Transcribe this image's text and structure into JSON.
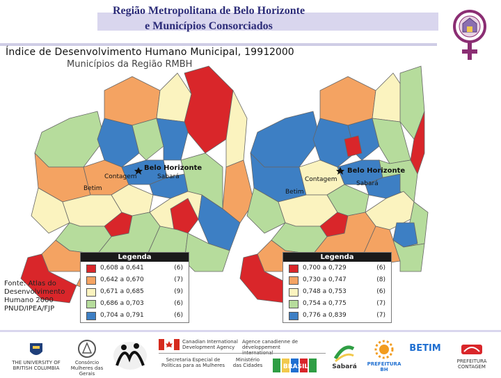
{
  "header": {
    "title_line1": "Região Metropolitana de Belo Horizonte",
    "title_line2": "e Municípios Consorciados"
  },
  "map": {
    "title": "Índice de Desenvolvimento Humano Municipal, 1991",
    "year_2": "2000",
    "subtitle": "Municípios da Região RMBH",
    "labels": {
      "capital": "Belo Horizonte",
      "contagem": "Contagem",
      "sabara": "Sabará",
      "betim": "Betim"
    }
  },
  "legend_1991": {
    "title": "Legenda",
    "rows": [
      {
        "range": "0,608 a 0,641",
        "count": "(6)",
        "color": "#d9262a"
      },
      {
        "range": "0,642 a 0,670",
        "count": "(7)",
        "color": "#f4a362"
      },
      {
        "range": "0,671 a 0,685",
        "count": "(9)",
        "color": "#fbf3bf"
      },
      {
        "range": "0,686 a 0,703",
        "count": "(6)",
        "color": "#b6dc9c"
      },
      {
        "range": "0,704 a 0,791",
        "count": "(6)",
        "color": "#3d7fc4"
      }
    ]
  },
  "legend_2000": {
    "title": "Legenda",
    "rows": [
      {
        "range": "0,700 a 0,729",
        "count": "(6)",
        "color": "#d9262a"
      },
      {
        "range": "0,730 a 0,747",
        "count": "(8)",
        "color": "#f4a362"
      },
      {
        "range": "0,748 a 0,753",
        "count": "(6)",
        "color": "#fbf3bf"
      },
      {
        "range": "0,754 a 0,775",
        "count": "(7)",
        "color": "#b6dc9c"
      },
      {
        "range": "0,776 a 0,839",
        "count": "(7)",
        "color": "#3d7fc4"
      }
    ]
  },
  "source": {
    "text_line1": "Fonte: Atlas do",
    "text_line2": "Desenvolvimento",
    "text_line3": "Humano 2000",
    "text_line4": "PNUD/IPEA/FJP"
  },
  "footer": {
    "ubc_line1": "THE UNIVERSITY OF",
    "ubc_line2": "BRITISH COLUMBIA",
    "consorcio": "Consórcio Mulheres das Gerais",
    "cida_en_1": "Canadian International",
    "cida_en_2": "Development Agency",
    "cida_fr_1": "Agence canadienne de",
    "cida_fr_2": "développement international",
    "secretaria_1": "Secretaria Especial de",
    "secretaria_2": "Políticas para as Mulheres",
    "ministerio_1": "Ministério",
    "ministerio_2": "das Cidades",
    "brasil": "BRASIL",
    "sabara": "Sabará",
    "pbh": "PREFEITURA BH",
    "betim": "BETIM",
    "contagem": "PREFEITURA CONTAGEM"
  },
  "colors": {
    "red": "#d9262a",
    "orange": "#f4a362",
    "yellow": "#fbf3bf",
    "green": "#b6dc9c",
    "blue": "#3d7fc4",
    "title": "#2b2b78",
    "band": "#d9d6ee"
  }
}
